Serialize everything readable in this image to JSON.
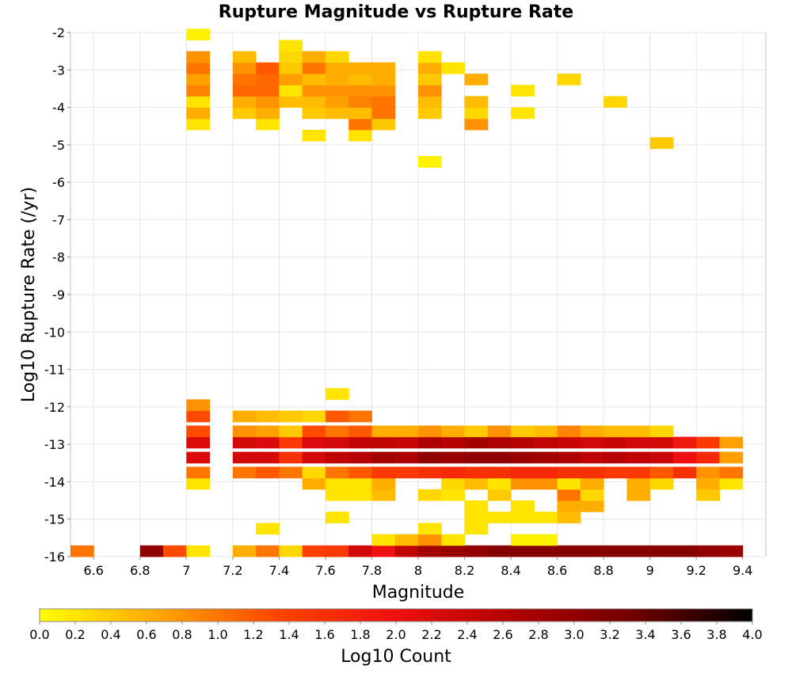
{
  "chart_data": {
    "type": "heatmap",
    "title": "Rupture Magnitude vs Rupture Rate",
    "xlabel": "Magnitude",
    "ylabel": "Log10 Rupture Rate (/yr)",
    "colorbar_label": "Log10 Count",
    "xlim": [
      6.5,
      9.5
    ],
    "ylim": [
      -16,
      -2
    ],
    "x_ticks": [
      "6.6",
      "6.8",
      "7",
      "7.2",
      "7.4",
      "7.6",
      "7.8",
      "8",
      "8.2",
      "8.4",
      "8.6",
      "8.8",
      "9",
      "9.2",
      "9.4"
    ],
    "y_ticks": [
      "-2",
      "-3",
      "-4",
      "-5",
      "-6",
      "-7",
      "-8",
      "-9",
      "-10",
      "-11",
      "-12",
      "-13",
      "-14",
      "-15",
      "-16"
    ],
    "colorbar_ticks": [
      "0.0",
      "0.2",
      "0.4",
      "0.6",
      "0.8",
      "1.0",
      "1.2",
      "1.4",
      "1.6",
      "1.8",
      "2.0",
      "2.2",
      "2.4",
      "2.6",
      "2.8",
      "3.0",
      "3.2",
      "3.4",
      "3.6",
      "3.8",
      "4.0"
    ],
    "colorbar_range": [
      0,
      4
    ],
    "colormap": [
      "#ffff00",
      "#ffa500",
      "#ff4500",
      "#ee1010",
      "#b00000",
      "#700000",
      "#000000"
    ],
    "bin_width_x": 0.1,
    "bin_height_y": 0.3,
    "cells": [
      [
        6.5,
        -16.0,
        1.0
      ],
      [
        6.8,
        -16.0,
        3.0
      ],
      [
        6.9,
        -16.0,
        1.3
      ],
      [
        7.0,
        -16.0,
        0.2
      ],
      [
        7.2,
        -16.0,
        0.6
      ],
      [
        7.3,
        -16.0,
        1.0
      ],
      [
        7.4,
        -16.0,
        0.3
      ],
      [
        7.5,
        -16.0,
        1.4
      ],
      [
        7.6,
        -16.0,
        1.5
      ],
      [
        7.7,
        -16.0,
        2.3
      ],
      [
        7.8,
        -16.0,
        2.0
      ],
      [
        7.9,
        -16.0,
        2.5
      ],
      [
        8.0,
        -16.0,
        2.8
      ],
      [
        8.1,
        -16.0,
        2.9
      ],
      [
        8.2,
        -16.0,
        3.0
      ],
      [
        8.3,
        -16.0,
        3.1
      ],
      [
        8.4,
        -16.0,
        3.1
      ],
      [
        8.5,
        -16.0,
        3.1
      ],
      [
        8.6,
        -16.0,
        3.1
      ],
      [
        8.7,
        -16.0,
        3.1
      ],
      [
        8.8,
        -16.0,
        3.1
      ],
      [
        8.9,
        -16.0,
        3.1
      ],
      [
        9.0,
        -16.0,
        3.1
      ],
      [
        9.1,
        -16.0,
        3.1
      ],
      [
        9.2,
        -16.0,
        3.0
      ],
      [
        9.3,
        -16.0,
        2.9
      ],
      [
        7.8,
        -15.7,
        0.2
      ],
      [
        7.9,
        -15.7,
        0.5
      ],
      [
        8.0,
        -15.7,
        0.8
      ],
      [
        8.1,
        -15.7,
        0.2
      ],
      [
        8.4,
        -15.7,
        0.1
      ],
      [
        8.5,
        -15.7,
        0.1
      ],
      [
        7.3,
        -15.4,
        0.2
      ],
      [
        8.0,
        -15.4,
        0.2
      ],
      [
        8.2,
        -15.4,
        0.2
      ],
      [
        7.6,
        -15.1,
        0.2
      ],
      [
        8.2,
        -15.1,
        0.2
      ],
      [
        8.3,
        -15.1,
        0.2
      ],
      [
        8.4,
        -15.1,
        0.2
      ],
      [
        8.5,
        -15.1,
        0.2
      ],
      [
        8.6,
        -15.1,
        0.5
      ],
      [
        8.2,
        -14.8,
        0.2
      ],
      [
        8.4,
        -14.8,
        0.2
      ],
      [
        8.6,
        -14.8,
        0.6
      ],
      [
        8.7,
        -14.8,
        0.6
      ],
      [
        7.6,
        -14.5,
        0.2
      ],
      [
        7.7,
        -14.5,
        0.2
      ],
      [
        7.8,
        -14.5,
        0.5
      ],
      [
        8.0,
        -14.5,
        0.3
      ],
      [
        8.1,
        -14.5,
        0.2
      ],
      [
        8.3,
        -14.5,
        0.4
      ],
      [
        8.6,
        -14.5,
        1.0
      ],
      [
        8.7,
        -14.5,
        0.3
      ],
      [
        8.9,
        -14.5,
        0.6
      ],
      [
        9.2,
        -14.5,
        0.4
      ],
      [
        7.0,
        -14.2,
        0.2
      ],
      [
        7.5,
        -14.2,
        0.6
      ],
      [
        7.6,
        -14.2,
        0.2
      ],
      [
        7.7,
        -14.2,
        0.2
      ],
      [
        7.8,
        -14.2,
        0.6
      ],
      [
        8.1,
        -14.2,
        0.3
      ],
      [
        8.2,
        -14.2,
        0.5
      ],
      [
        8.3,
        -14.2,
        0.2
      ],
      [
        8.4,
        -14.2,
        0.8
      ],
      [
        8.5,
        -14.2,
        0.8
      ],
      [
        8.6,
        -14.2,
        0.2
      ],
      [
        8.7,
        -14.2,
        0.6
      ],
      [
        8.9,
        -14.2,
        0.6
      ],
      [
        9.0,
        -14.2,
        0.3
      ],
      [
        9.2,
        -14.2,
        0.6
      ],
      [
        9.3,
        -14.2,
        0.2
      ],
      [
        7.0,
        -13.9,
        1.0
      ],
      [
        7.2,
        -13.9,
        1.0
      ],
      [
        7.3,
        -13.9,
        1.2
      ],
      [
        7.4,
        -13.9,
        1.0
      ],
      [
        7.5,
        -13.9,
        0.3
      ],
      [
        7.6,
        -13.9,
        1.0
      ],
      [
        7.7,
        -13.9,
        1.2
      ],
      [
        7.8,
        -13.9,
        1.5
      ],
      [
        7.9,
        -13.9,
        1.5
      ],
      [
        8.0,
        -13.9,
        1.6
      ],
      [
        8.1,
        -13.9,
        1.7
      ],
      [
        8.2,
        -13.9,
        1.6
      ],
      [
        8.3,
        -13.9,
        1.6
      ],
      [
        8.4,
        -13.9,
        1.7
      ],
      [
        8.5,
        -13.9,
        1.7
      ],
      [
        8.6,
        -13.9,
        1.6
      ],
      [
        8.7,
        -13.9,
        1.6
      ],
      [
        8.8,
        -13.9,
        1.5
      ],
      [
        8.9,
        -13.9,
        1.5
      ],
      [
        9.0,
        -13.9,
        1.2
      ],
      [
        9.1,
        -13.9,
        1.6
      ],
      [
        9.2,
        -13.9,
        0.8
      ],
      [
        9.3,
        -13.9,
        1.0
      ],
      [
        7.0,
        -13.5,
        2.2
      ],
      [
        7.2,
        -13.5,
        2.3
      ],
      [
        7.3,
        -13.5,
        2.3
      ],
      [
        7.4,
        -13.5,
        1.6
      ],
      [
        7.5,
        -13.5,
        2.3
      ],
      [
        7.6,
        -13.5,
        2.5
      ],
      [
        7.7,
        -13.5,
        2.6
      ],
      [
        7.8,
        -13.5,
        2.8
      ],
      [
        7.9,
        -13.5,
        2.7
      ],
      [
        8.0,
        -13.5,
        3.0
      ],
      [
        8.1,
        -13.5,
        2.9
      ],
      [
        8.2,
        -13.5,
        3.0
      ],
      [
        8.3,
        -13.5,
        3.0
      ],
      [
        8.4,
        -13.5,
        2.9
      ],
      [
        8.5,
        -13.5,
        2.8
      ],
      [
        8.6,
        -13.5,
        2.7
      ],
      [
        8.7,
        -13.5,
        2.5
      ],
      [
        8.8,
        -13.5,
        2.6
      ],
      [
        8.9,
        -13.5,
        2.5
      ],
      [
        9.0,
        -13.5,
        2.4
      ],
      [
        9.1,
        -13.5,
        2.0
      ],
      [
        9.2,
        -13.5,
        1.7
      ],
      [
        9.3,
        -13.5,
        0.7
      ],
      [
        7.0,
        -13.1,
        2.2
      ],
      [
        7.2,
        -13.1,
        2.3
      ],
      [
        7.3,
        -13.1,
        2.2
      ],
      [
        7.4,
        -13.1,
        1.5
      ],
      [
        7.5,
        -13.1,
        2.2
      ],
      [
        7.6,
        -13.1,
        2.3
      ],
      [
        7.7,
        -13.1,
        2.5
      ],
      [
        7.8,
        -13.1,
        2.5
      ],
      [
        7.9,
        -13.1,
        2.4
      ],
      [
        8.0,
        -13.1,
        2.7
      ],
      [
        8.1,
        -13.1,
        2.6
      ],
      [
        8.2,
        -13.1,
        2.8
      ],
      [
        8.3,
        -13.1,
        2.7
      ],
      [
        8.4,
        -13.1,
        2.6
      ],
      [
        8.5,
        -13.1,
        2.5
      ],
      [
        8.6,
        -13.1,
        2.4
      ],
      [
        8.7,
        -13.1,
        2.3
      ],
      [
        8.8,
        -13.1,
        2.4
      ],
      [
        8.9,
        -13.1,
        2.3
      ],
      [
        9.0,
        -13.1,
        2.3
      ],
      [
        9.1,
        -13.1,
        1.9
      ],
      [
        9.2,
        -13.1,
        1.5
      ],
      [
        9.3,
        -13.1,
        0.7
      ],
      [
        7.0,
        -12.8,
        1.3
      ],
      [
        7.2,
        -12.8,
        0.8
      ],
      [
        7.3,
        -12.8,
        0.7
      ],
      [
        7.4,
        -12.8,
        0.4
      ],
      [
        7.5,
        -12.8,
        1.3
      ],
      [
        7.6,
        -12.8,
        1.0
      ],
      [
        7.7,
        -12.8,
        1.2
      ],
      [
        7.8,
        -12.8,
        0.6
      ],
      [
        7.9,
        -12.8,
        0.6
      ],
      [
        8.0,
        -12.8,
        0.8
      ],
      [
        8.1,
        -12.8,
        0.6
      ],
      [
        8.2,
        -12.8,
        0.4
      ],
      [
        8.3,
        -12.8,
        0.8
      ],
      [
        8.4,
        -12.8,
        0.4
      ],
      [
        8.5,
        -12.8,
        0.5
      ],
      [
        8.6,
        -12.8,
        0.9
      ],
      [
        8.7,
        -12.8,
        0.6
      ],
      [
        8.8,
        -12.8,
        0.5
      ],
      [
        8.9,
        -12.8,
        0.5
      ],
      [
        9.0,
        -12.8,
        0.3
      ],
      [
        7.0,
        -12.4,
        1.3
      ],
      [
        7.2,
        -12.4,
        0.6
      ],
      [
        7.3,
        -12.4,
        0.5
      ],
      [
        7.4,
        -12.4,
        0.4
      ],
      [
        7.5,
        -12.4,
        0.3
      ],
      [
        7.6,
        -12.4,
        1.2
      ],
      [
        7.7,
        -12.4,
        1.0
      ],
      [
        7.0,
        -12.1,
        0.8
      ],
      [
        7.6,
        -11.8,
        0.2
      ],
      [
        8.0,
        -5.6,
        0.1
      ],
      [
        9.0,
        -5.1,
        0.4
      ],
      [
        7.5,
        -4.9,
        0.2
      ],
      [
        7.7,
        -4.9,
        0.2
      ],
      [
        7.0,
        -4.6,
        0.2
      ],
      [
        7.3,
        -4.6,
        0.2
      ],
      [
        7.7,
        -4.6,
        1.0
      ],
      [
        7.8,
        -4.6,
        0.4
      ],
      [
        8.2,
        -4.6,
        0.8
      ],
      [
        7.0,
        -4.3,
        0.6
      ],
      [
        7.2,
        -4.3,
        0.4
      ],
      [
        7.3,
        -4.3,
        0.6
      ],
      [
        7.5,
        -4.3,
        0.4
      ],
      [
        7.6,
        -4.3,
        0.5
      ],
      [
        7.7,
        -4.3,
        0.5
      ],
      [
        7.8,
        -4.3,
        1.0
      ],
      [
        8.0,
        -4.3,
        0.4
      ],
      [
        8.2,
        -4.3,
        0.3
      ],
      [
        8.4,
        -4.3,
        0.2
      ],
      [
        7.0,
        -4.0,
        0.2
      ],
      [
        7.2,
        -4.0,
        0.6
      ],
      [
        7.3,
        -4.0,
        0.8
      ],
      [
        7.4,
        -4.0,
        0.5
      ],
      [
        7.5,
        -4.0,
        0.5
      ],
      [
        7.6,
        -4.0,
        0.7
      ],
      [
        7.7,
        -4.0,
        0.9
      ],
      [
        7.8,
        -4.0,
        1.0
      ],
      [
        8.0,
        -4.0,
        0.5
      ],
      [
        8.2,
        -4.0,
        0.5
      ],
      [
        8.8,
        -4.0,
        0.3
      ],
      [
        7.0,
        -3.7,
        0.9
      ],
      [
        7.2,
        -3.7,
        1.1
      ],
      [
        7.3,
        -3.7,
        1.1
      ],
      [
        7.4,
        -3.7,
        0.2
      ],
      [
        7.5,
        -3.7,
        0.8
      ],
      [
        7.6,
        -3.7,
        0.8
      ],
      [
        7.7,
        -3.7,
        0.8
      ],
      [
        7.8,
        -3.7,
        0.8
      ],
      [
        8.0,
        -3.7,
        0.8
      ],
      [
        8.4,
        -3.7,
        0.2
      ],
      [
        7.0,
        -3.4,
        0.7
      ],
      [
        7.2,
        -3.4,
        1.0
      ],
      [
        7.3,
        -3.4,
        1.1
      ],
      [
        7.4,
        -3.4,
        0.7
      ],
      [
        7.5,
        -3.4,
        0.5
      ],
      [
        7.6,
        -3.4,
        0.6
      ],
      [
        7.7,
        -3.4,
        0.5
      ],
      [
        7.8,
        -3.4,
        0.6
      ],
      [
        8.0,
        -3.4,
        0.4
      ],
      [
        8.2,
        -3.4,
        0.6
      ],
      [
        8.6,
        -3.4,
        0.3
      ],
      [
        7.0,
        -3.1,
        1.0
      ],
      [
        7.2,
        -3.1,
        0.8
      ],
      [
        7.3,
        -3.1,
        1.2
      ],
      [
        7.4,
        -3.1,
        0.4
      ],
      [
        7.5,
        -3.1,
        1.0
      ],
      [
        7.6,
        -3.1,
        0.6
      ],
      [
        7.7,
        -3.1,
        0.6
      ],
      [
        7.8,
        -3.1,
        0.6
      ],
      [
        8.0,
        -3.1,
        0.6
      ],
      [
        8.1,
        -3.1,
        0.2
      ],
      [
        7.0,
        -2.8,
        0.8
      ],
      [
        7.2,
        -2.8,
        0.5
      ],
      [
        7.4,
        -2.8,
        0.3
      ],
      [
        7.5,
        -2.8,
        0.6
      ],
      [
        7.6,
        -2.8,
        0.3
      ],
      [
        8.0,
        -2.8,
        0.2
      ],
      [
        7.4,
        -2.5,
        0.2
      ],
      [
        7.0,
        -2.2,
        0.1
      ]
    ]
  }
}
